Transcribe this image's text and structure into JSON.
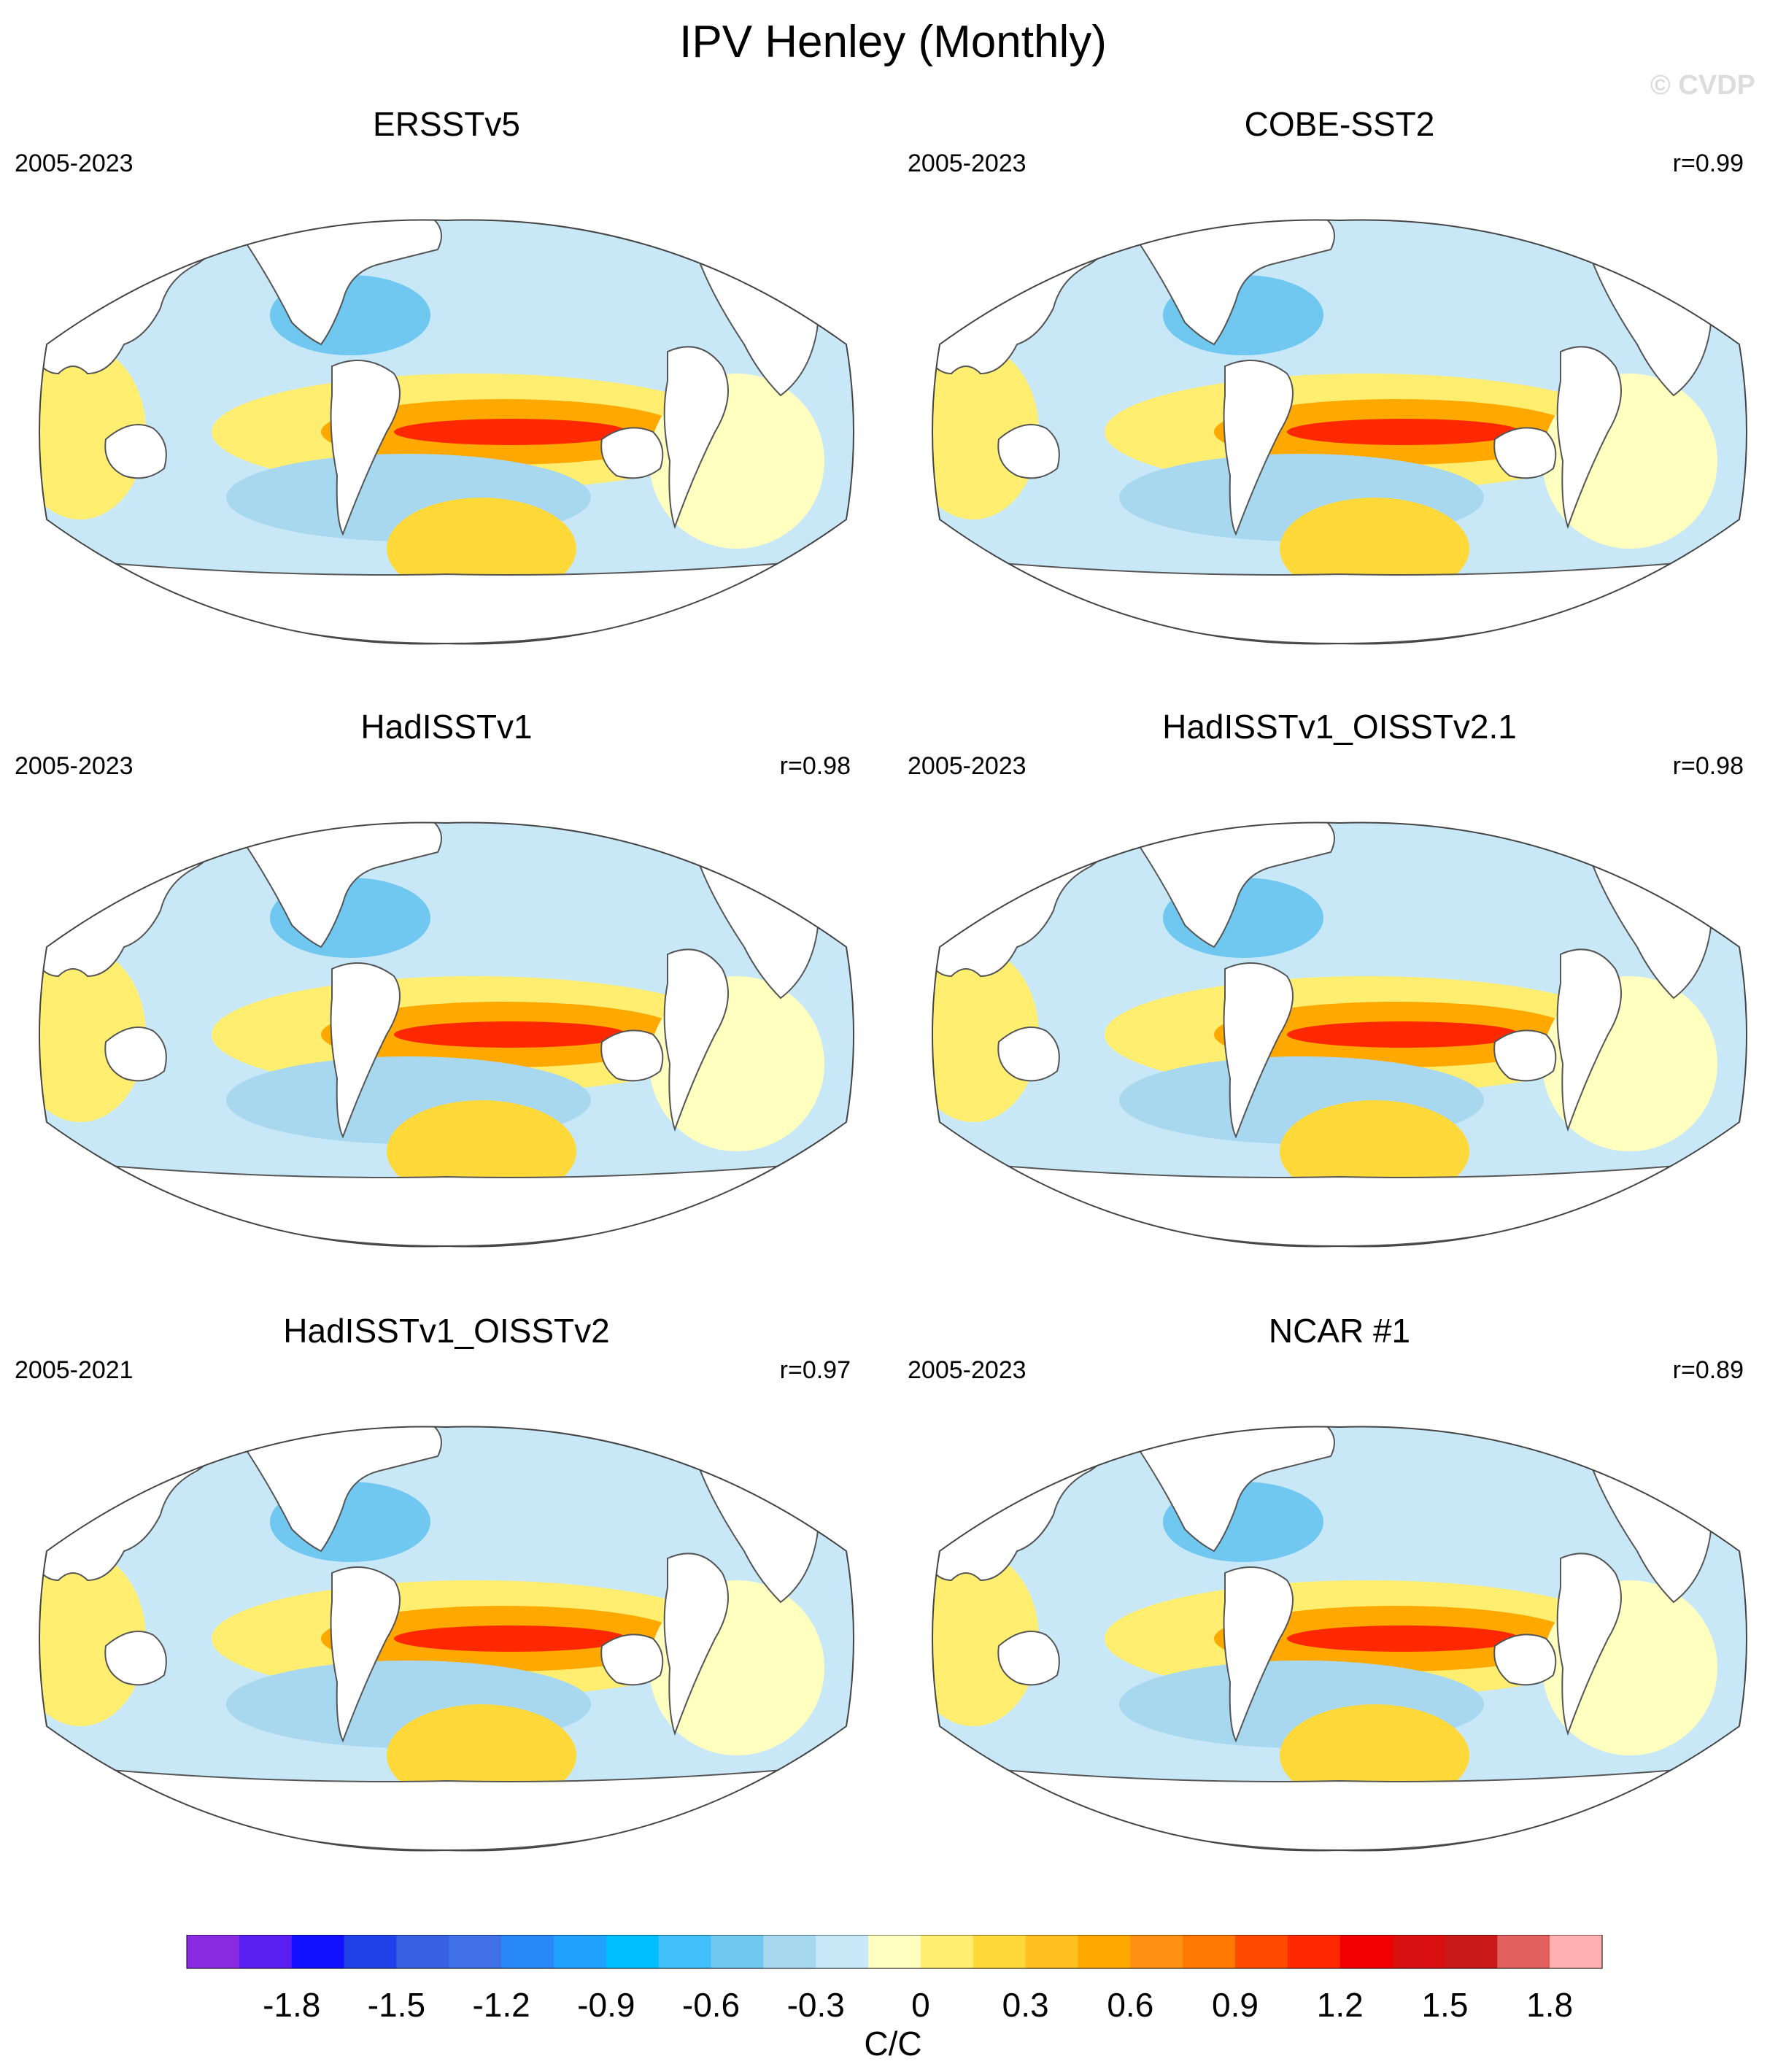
{
  "title": "IPV Henley (Monthly)",
  "watermark": "© CVDP",
  "panels": [
    {
      "name": "ERSSTv5",
      "period": "2005-2023",
      "corr": ""
    },
    {
      "name": "COBE-SST2",
      "period": "2005-2023",
      "corr": "r=0.99"
    },
    {
      "name": "HadISSTv1",
      "period": "2005-2023",
      "corr": "r=0.98"
    },
    {
      "name": "HadISSTv1_OISSTv2.1",
      "period": "2005-2023",
      "corr": "r=0.98"
    },
    {
      "name": "HadISSTv1_OISSTv2",
      "period": "2005-2021",
      "corr": "r=0.97"
    },
    {
      "name": "NCAR #1",
      "period": "2005-2023",
      "corr": "r=0.89"
    }
  ],
  "colorbar": {
    "unit": "C/C",
    "tick_labels": [
      "-1.8",
      "-1.5",
      "-1.2",
      "-0.9",
      "-0.6",
      "-0.3",
      "0",
      "0.3",
      "0.6",
      "0.9",
      "1.2",
      "1.5",
      "1.8"
    ],
    "colors": [
      "#8a2be2",
      "#5a1ef0",
      "#1010ff",
      "#2040e8",
      "#3560e0",
      "#4070e8",
      "#2888f8",
      "#20a0ff",
      "#00bfff",
      "#40c0f8",
      "#70c8f0",
      "#a8d8f0",
      "#c8e8f8",
      "#ffffc0",
      "#ffee70",
      "#ffd83a",
      "#ffc020",
      "#ffa800",
      "#ff9010",
      "#ff7800",
      "#ff4a00",
      "#ff2800",
      "#f00000",
      "#d81010",
      "#c81818",
      "#e06060",
      "#ffb0b0"
    ]
  },
  "palette": {
    "land": "#ffffff",
    "light_blue": "#c8e8f8",
    "blue": "#a8d8f0",
    "mid_blue": "#70c8f0",
    "deep_blue": "#40c0f8",
    "light_yellow": "#ffffc0",
    "yellow": "#ffee70",
    "gold": "#ffd83a",
    "orange": "#ffa800",
    "dark_orange": "#ff7800",
    "red": "#ff2800",
    "deep_red": "#f00000"
  }
}
